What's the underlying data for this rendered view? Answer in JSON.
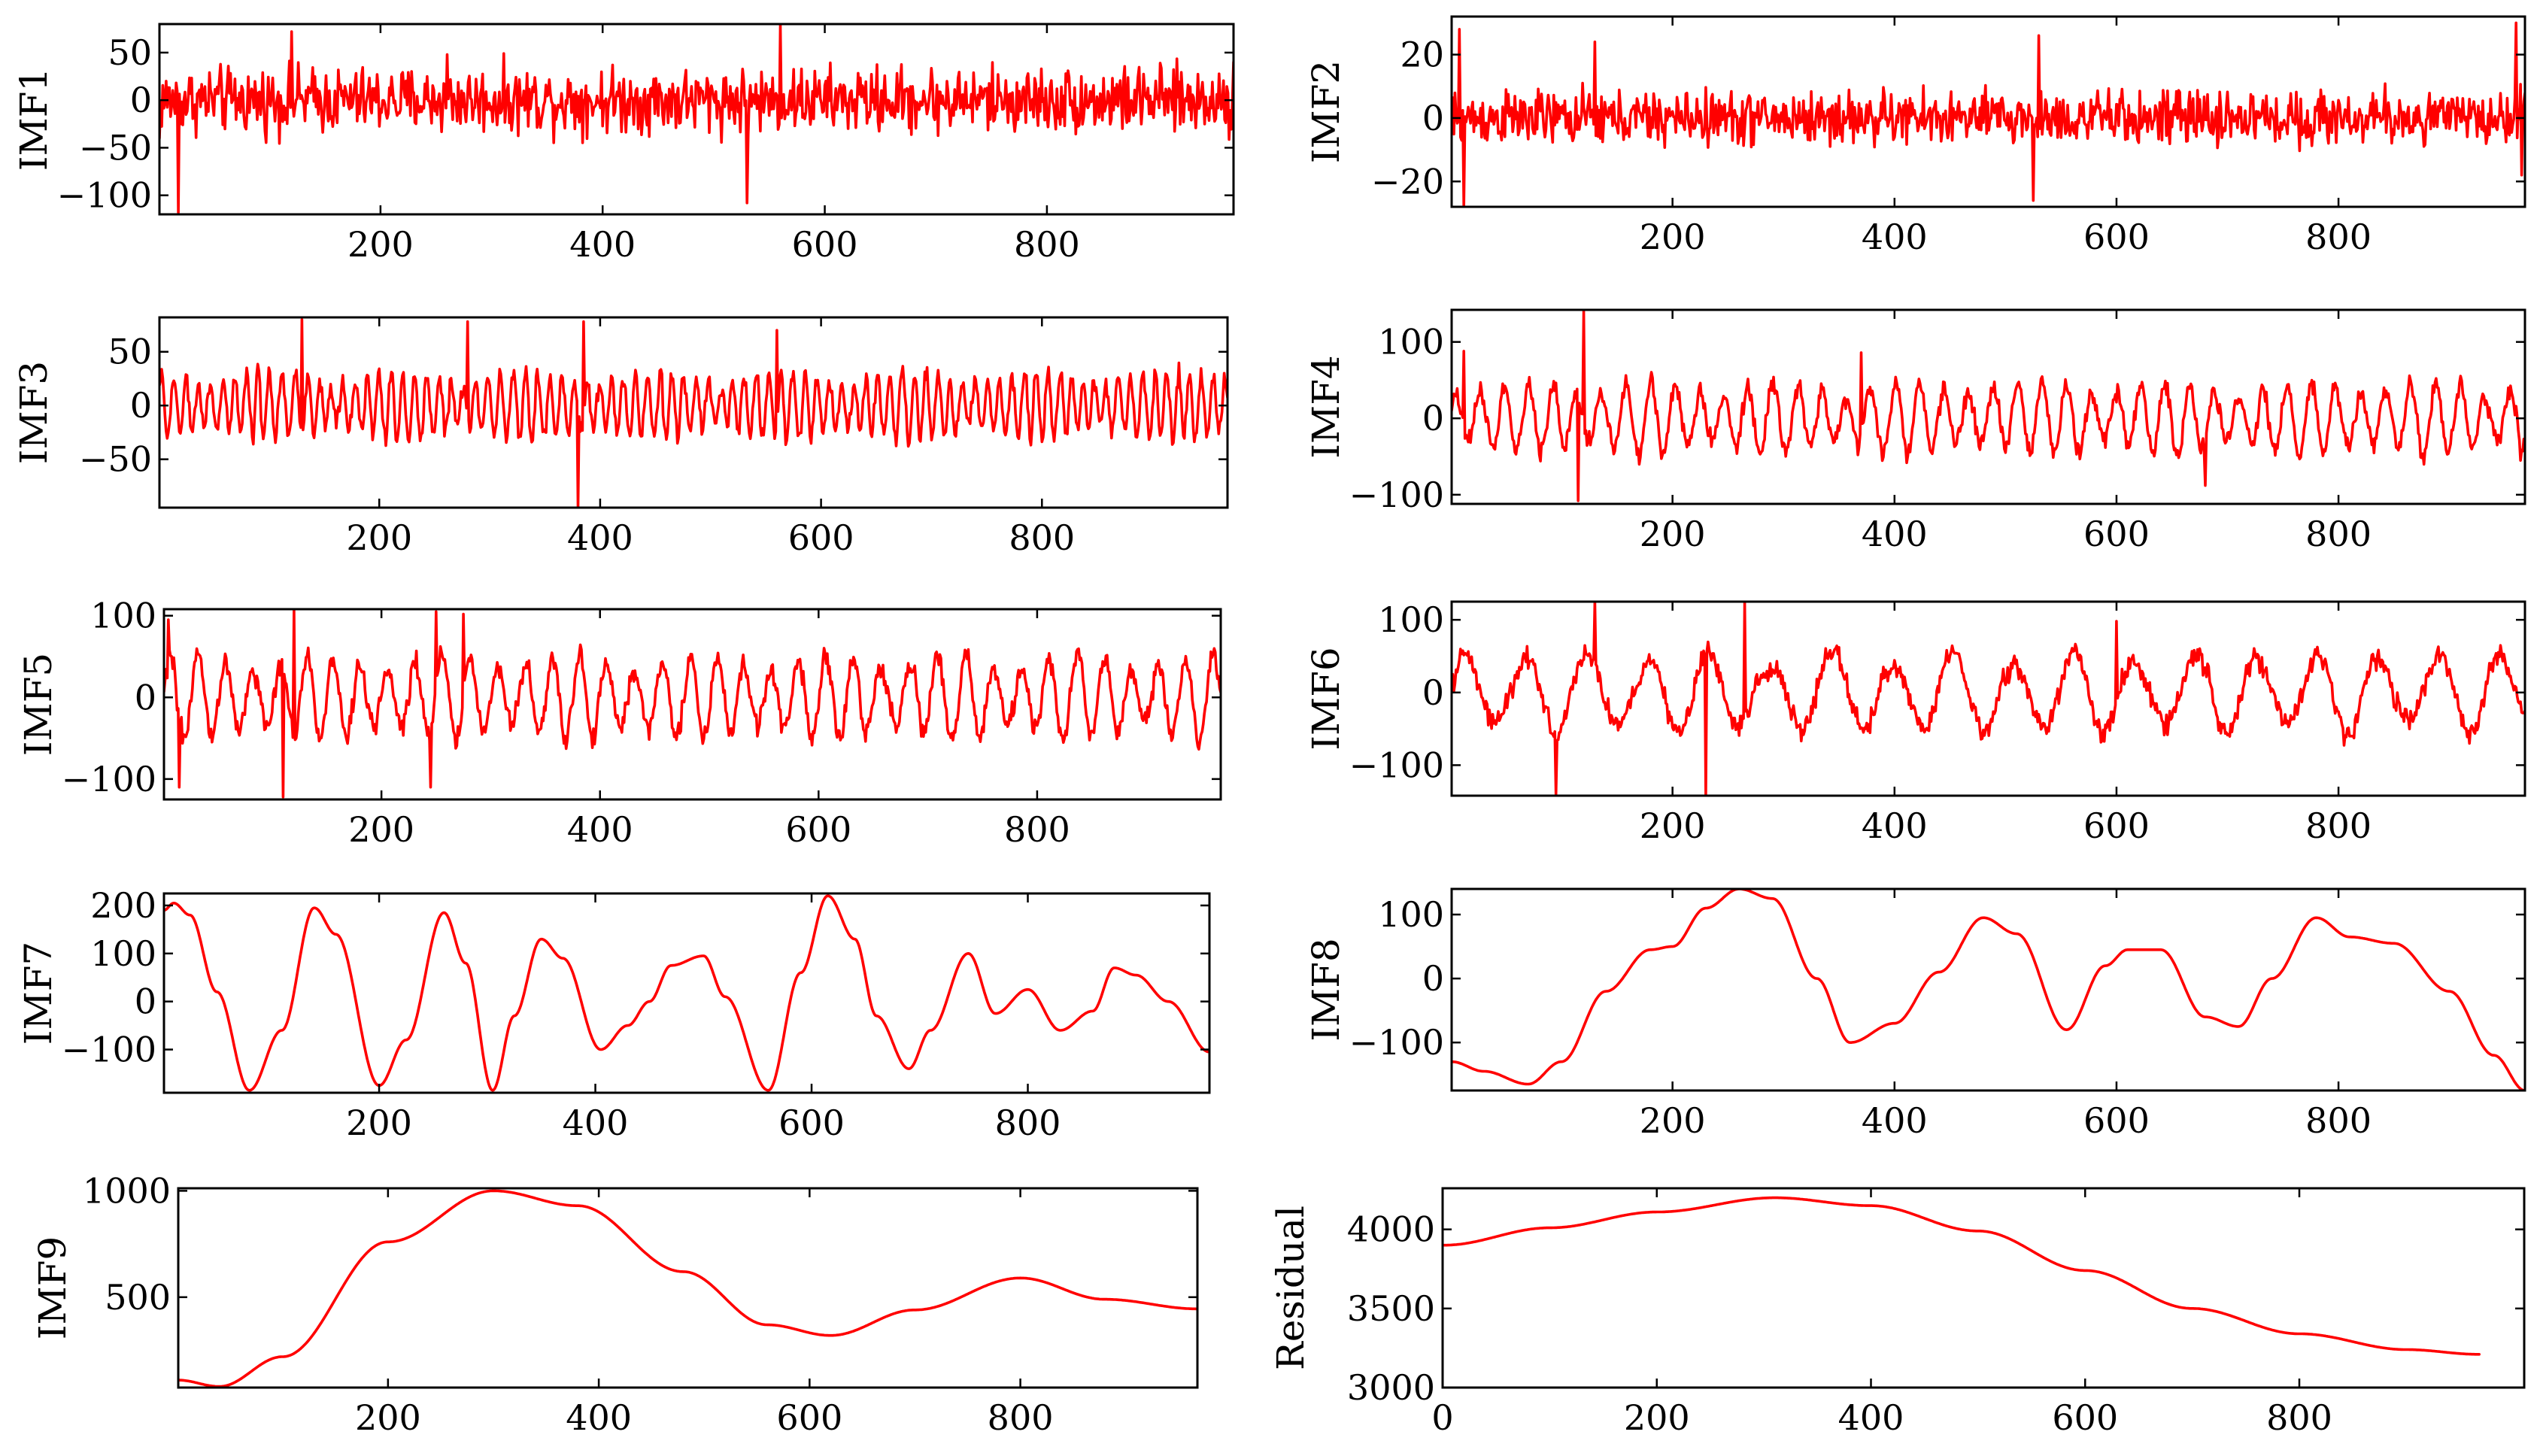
{
  "figure": {
    "line_color": "#ff0000",
    "layout": "5 rows x 2 columns"
  },
  "chart_data": [
    {
      "type": "line",
      "title": "",
      "ylabel": "IMF1",
      "xlabel": "",
      "x": {
        "start": 1,
        "end": 968
      },
      "xlim": [
        1,
        968
      ],
      "ylim": [
        -120,
        80
      ],
      "xticks": [
        200,
        400,
        600,
        800
      ],
      "yticks": [
        -100,
        -50,
        0,
        50
      ],
      "xtick_labels": [
        "200",
        "400",
        "600",
        "800"
      ],
      "ytick_labels": [
        "−100",
        "−50",
        "0",
        "50"
      ],
      "series": [
        {
          "name": "IMF1",
          "kind": "noise",
          "amplitude": 24,
          "values": [],
          "spikes": [
            [
              1,
              -40
            ],
            [
              18,
              -118
            ],
            [
              120,
              72
            ],
            [
              260,
              48
            ],
            [
              530,
              -108
            ],
            [
              560,
              80
            ],
            [
              968,
              40
            ]
          ]
        }
      ]
    },
    {
      "type": "line",
      "title": "",
      "ylabel": "IMF2",
      "xlabel": "",
      "x": {
        "start": 1,
        "end": 968
      },
      "xlim": [
        1,
        968
      ],
      "ylim": [
        -28,
        32
      ],
      "xticks": [
        200,
        400,
        600,
        800
      ],
      "yticks": [
        -20,
        0,
        20
      ],
      "xtick_labels": [
        "200",
        "400",
        "600",
        "800"
      ],
      "ytick_labels": [
        "−20",
        "0",
        "20"
      ],
      "series": [
        {
          "name": "IMF2",
          "kind": "noise",
          "amplitude": 6,
          "values": [],
          "spikes": [
            [
              8,
              28
            ],
            [
              12,
              -28
            ],
            [
              130,
              24
            ],
            [
              525,
              -26
            ],
            [
              530,
              26
            ],
            [
              960,
              30
            ],
            [
              965,
              -18
            ]
          ]
        }
      ]
    },
    {
      "type": "line",
      "title": "",
      "ylabel": "IMF3",
      "xlabel": "",
      "x": {
        "start": 1,
        "end": 968
      },
      "xlim": [
        1,
        968
      ],
      "ylim": [
        -95,
        82
      ],
      "xticks": [
        200,
        400,
        600,
        800
      ],
      "yticks": [
        -50,
        0,
        50
      ],
      "xtick_labels": [
        "200",
        "400",
        "600",
        "800"
      ],
      "ytick_labels": [
        "−50",
        "0",
        "50"
      ],
      "series": [
        {
          "name": "IMF3",
          "kind": "oscillation",
          "period": 11,
          "amplitude": 32,
          "values": [],
          "spikes": [
            [
              130,
              80
            ],
            [
              280,
              78
            ],
            [
              380,
              -95
            ],
            [
              385,
              78
            ],
            [
              560,
              70
            ],
            [
              965,
              30
            ]
          ]
        }
      ]
    },
    {
      "type": "line",
      "title": "",
      "ylabel": "IMF4",
      "xlabel": "",
      "x": {
        "start": 1,
        "end": 968
      },
      "xlim": [
        1,
        968
      ],
      "ylim": [
        -112,
        142
      ],
      "xticks": [
        200,
        400,
        600,
        800
      ],
      "yticks": [
        -100,
        0,
        100
      ],
      "xtick_labels": [
        "200",
        "400",
        "600",
        "800"
      ],
      "ytick_labels": [
        "−100",
        "0",
        "100"
      ],
      "series": [
        {
          "name": "IMF4",
          "kind": "oscillation",
          "period": 22,
          "amplitude": 48,
          "values": [],
          "spikes": [
            [
              12,
              88
            ],
            [
              115,
              -108
            ],
            [
              120,
              140
            ],
            [
              370,
              86
            ],
            [
              680,
              -88
            ]
          ]
        }
      ]
    },
    {
      "type": "line",
      "title": "",
      "ylabel": "IMF5",
      "xlabel": "",
      "x": {
        "start": 1,
        "end": 968
      },
      "xlim": [
        1,
        968
      ],
      "ylim": [
        -125,
        108
      ],
      "xticks": [
        200,
        400,
        600,
        800
      ],
      "yticks": [
        -100,
        0,
        100
      ],
      "xtick_labels": [
        "200",
        "400",
        "600",
        "800"
      ],
      "ytick_labels": [
        "−100",
        "0",
        "100"
      ],
      "series": [
        {
          "name": "IMF5",
          "kind": "oscillation",
          "period": 25,
          "amplitude": 52,
          "values": [],
          "spikes": [
            [
              5,
              95
            ],
            [
              15,
              -110
            ],
            [
              110,
              -122
            ],
            [
              120,
              108
            ],
            [
              245,
              -110
            ],
            [
              250,
              105
            ],
            [
              275,
              102
            ]
          ]
        }
      ]
    },
    {
      "type": "line",
      "title": "",
      "ylabel": "IMF6",
      "xlabel": "",
      "x": {
        "start": 1,
        "end": 968
      },
      "xlim": [
        1,
        968
      ],
      "ylim": [
        -142,
        125
      ],
      "xticks": [
        200,
        400,
        600,
        800
      ],
      "yticks": [
        -100,
        0,
        100
      ],
      "xtick_labels": [
        "200",
        "400",
        "600",
        "800"
      ],
      "ytick_labels": [
        "−100",
        "0",
        "100"
      ],
      "series": [
        {
          "name": "IMF6",
          "kind": "oscillation",
          "period": 55,
          "amplitude": 58,
          "values": [],
          "spikes": [
            [
              95,
              -140
            ],
            [
              130,
              125
            ],
            [
              230,
              -140
            ],
            [
              265,
              125
            ],
            [
              600,
              98
            ]
          ]
        }
      ]
    },
    {
      "type": "line",
      "title": "",
      "ylabel": "IMF7",
      "xlabel": "",
      "x": {
        "start": 1,
        "end": 968
      },
      "xlim": [
        1,
        968
      ],
      "ylim": [
        -190,
        225
      ],
      "xticks": [
        200,
        400,
        600,
        800
      ],
      "yticks": [
        -100,
        0,
        100,
        200
      ],
      "xtick_labels": [
        "200",
        "400",
        "600",
        "800"
      ],
      "ytick_labels": [
        "−100",
        "0",
        "100",
        "200"
      ],
      "series": [
        {
          "name": "IMF7",
          "kind": "anchors",
          "values": [],
          "anchors": [
            [
              1,
              190
            ],
            [
              10,
              205
            ],
            [
              25,
              180
            ],
            [
              50,
              20
            ],
            [
              80,
              -185
            ],
            [
              110,
              -60
            ],
            [
              140,
              195
            ],
            [
              160,
              140
            ],
            [
              200,
              -175
            ],
            [
              225,
              -80
            ],
            [
              260,
              185
            ],
            [
              280,
              80
            ],
            [
              305,
              -185
            ],
            [
              325,
              -30
            ],
            [
              350,
              130
            ],
            [
              370,
              90
            ],
            [
              405,
              -100
            ],
            [
              430,
              -50
            ],
            [
              450,
              0
            ],
            [
              470,
              75
            ],
            [
              500,
              95
            ],
            [
              520,
              10
            ],
            [
              560,
              -185
            ],
            [
              590,
              60
            ],
            [
              615,
              220
            ],
            [
              640,
              130
            ],
            [
              660,
              -30
            ],
            [
              690,
              -140
            ],
            [
              710,
              -60
            ],
            [
              745,
              100
            ],
            [
              770,
              -25
            ],
            [
              800,
              25
            ],
            [
              830,
              -60
            ],
            [
              860,
              -20
            ],
            [
              880,
              70
            ],
            [
              900,
              55
            ],
            [
              930,
              0
            ],
            [
              968,
              -105
            ]
          ]
        }
      ]
    },
    {
      "type": "line",
      "title": "",
      "ylabel": "IMF8",
      "xlabel": "",
      "x": {
        "start": 1,
        "end": 968
      },
      "xlim": [
        1,
        968
      ],
      "ylim": [
        -175,
        140
      ],
      "xticks": [
        200,
        400,
        600,
        800
      ],
      "yticks": [
        -100,
        0,
        100
      ],
      "xtick_labels": [
        "200",
        "400",
        "600",
        "800"
      ],
      "ytick_labels": [
        "−100",
        "0",
        "100"
      ],
      "series": [
        {
          "name": "IMF8",
          "kind": "anchors",
          "values": [],
          "anchors": [
            [
              1,
              -130
            ],
            [
              30,
              -145
            ],
            [
              70,
              -165
            ],
            [
              100,
              -130
            ],
            [
              140,
              -20
            ],
            [
              180,
              45
            ],
            [
              200,
              50
            ],
            [
              230,
              110
            ],
            [
              260,
              140
            ],
            [
              290,
              125
            ],
            [
              330,
              0
            ],
            [
              360,
              -100
            ],
            [
              400,
              -70
            ],
            [
              440,
              10
            ],
            [
              480,
              95
            ],
            [
              510,
              70
            ],
            [
              555,
              -80
            ],
            [
              590,
              20
            ],
            [
              610,
              45
            ],
            [
              640,
              45
            ],
            [
              680,
              -60
            ],
            [
              710,
              -75
            ],
            [
              740,
              0
            ],
            [
              780,
              95
            ],
            [
              810,
              65
            ],
            [
              850,
              55
            ],
            [
              900,
              -20
            ],
            [
              940,
              -120
            ],
            [
              968,
              -175
            ]
          ]
        }
      ]
    },
    {
      "type": "line",
      "title": "",
      "ylabel": "IMF9",
      "xlabel": "",
      "x": {
        "start": 1,
        "end": 968
      },
      "xlim": [
        1,
        968
      ],
      "ylim": [
        75,
        1012
      ],
      "xticks": [
        200,
        400,
        600,
        800
      ],
      "yticks": [
        500,
        1000
      ],
      "xtick_labels": [
        "200",
        "400",
        "600",
        "800"
      ],
      "ytick_labels": [
        "500",
        "1000"
      ],
      "series": [
        {
          "name": "IMF9",
          "kind": "anchors",
          "values": [],
          "anchors": [
            [
              1,
              110
            ],
            [
              40,
              80
            ],
            [
              100,
              220
            ],
            [
              200,
              760
            ],
            [
              300,
              1000
            ],
            [
              380,
              930
            ],
            [
              480,
              620
            ],
            [
              560,
              370
            ],
            [
              620,
              320
            ],
            [
              700,
              440
            ],
            [
              800,
              590
            ],
            [
              880,
              490
            ],
            [
              968,
              445
            ]
          ]
        }
      ]
    },
    {
      "type": "line",
      "title": "",
      "ylabel": "Residual",
      "xlabel": "",
      "x": {
        "start": 1,
        "end": 968
      },
      "xlim": [
        0,
        1010
      ],
      "ylim": [
        3000,
        4260
      ],
      "xticks": [
        0,
        200,
        400,
        600,
        800
      ],
      "yticks": [
        3000,
        3500,
        4000
      ],
      "xtick_labels": [
        "0",
        "200",
        "400",
        "600",
        "800"
      ],
      "ytick_labels": [
        "3000",
        "3500",
        "4000"
      ],
      "series": [
        {
          "name": "Residual",
          "kind": "anchors",
          "values": [],
          "anchors": [
            [
              1,
              3900
            ],
            [
              100,
              4010
            ],
            [
              200,
              4110
            ],
            [
              310,
              4200
            ],
            [
              400,
              4150
            ],
            [
              500,
              3990
            ],
            [
              600,
              3740
            ],
            [
              700,
              3500
            ],
            [
              800,
              3340
            ],
            [
              900,
              3240
            ],
            [
              968,
              3210
            ]
          ]
        }
      ]
    }
  ]
}
